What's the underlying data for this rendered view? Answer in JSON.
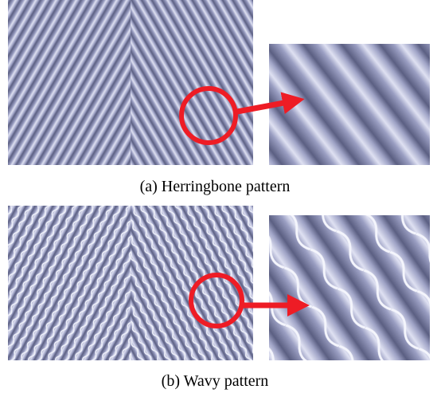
{
  "panels": [
    {
      "caption": "(a) Herringbone pattern"
    },
    {
      "caption": "(b) Wavy pattern"
    }
  ]
}
